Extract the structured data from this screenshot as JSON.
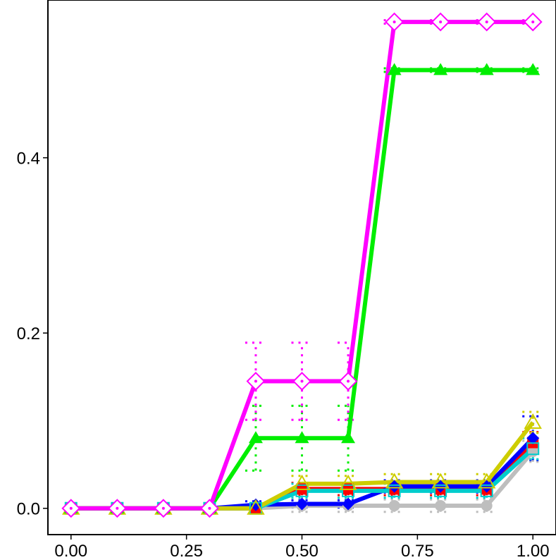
{
  "chart_data": {
    "type": "line",
    "title": "",
    "xlabel": "",
    "ylabel": "",
    "xlim": [
      -0.05,
      1.05
    ],
    "ylim": [
      -0.03,
      0.58
    ],
    "x": [
      0.0,
      0.1,
      0.2,
      0.3,
      0.4,
      0.5,
      0.6,
      0.7,
      0.8,
      0.9,
      1.0
    ],
    "x_ticks": [
      {
        "value": 0.0,
        "label": "0.00"
      },
      {
        "value": 0.25,
        "label": "0.25"
      },
      {
        "value": 0.5,
        "label": "0.50"
      },
      {
        "value": 0.75,
        "label": "0.75"
      },
      {
        "value": 1.0,
        "label": "1.00"
      }
    ],
    "y_ticks": [
      {
        "value": 0.0,
        "label": "0.0"
      },
      {
        "value": 0.2,
        "label": "0.2"
      },
      {
        "value": 0.4,
        "label": "0.4"
      }
    ],
    "grid": false,
    "legend": "none",
    "series": [
      {
        "color": "#bebebe",
        "marker": "circle",
        "values": [
          0,
          0,
          0,
          0,
          0,
          0.003,
          0.003,
          0.003,
          0.003,
          0.003,
          0.065
        ],
        "err": [
          0,
          0,
          0,
          0,
          0,
          0.007,
          0.007,
          0.007,
          0.007,
          0.007,
          0.012
        ]
      },
      {
        "color": "#ff0000",
        "marker": "square-filled",
        "values": [
          0,
          0,
          0,
          0,
          0,
          0.022,
          0.022,
          0.022,
          0.022,
          0.022,
          0.075
        ],
        "err": [
          0,
          0,
          0,
          0,
          0,
          0.007,
          0.007,
          0.007,
          0.007,
          0.007,
          0.012
        ]
      },
      {
        "color": "#0000ff",
        "marker": "diamond-filled",
        "values": [
          0,
          0,
          0,
          0,
          0.004,
          0.005,
          0.005,
          0.025,
          0.025,
          0.025,
          0.08
        ],
        "err": [
          0,
          0,
          0,
          0,
          0.004,
          0.004,
          0.004,
          0.007,
          0.007,
          0.007,
          0.025
        ]
      },
      {
        "color": "#00cdcd",
        "marker": "square-open",
        "values": [
          0,
          0,
          0,
          0,
          0,
          0.02,
          0.02,
          0.02,
          0.02,
          0.02,
          0.068
        ],
        "err": [
          0,
          0,
          0,
          0,
          0,
          0.008,
          0.008,
          0.008,
          0.008,
          0.008,
          0.012
        ]
      },
      {
        "color": "#cdcd00",
        "marker": "triangle-open",
        "values": [
          0,
          0,
          0,
          0,
          0,
          0.028,
          0.028,
          0.03,
          0.03,
          0.03,
          0.098
        ],
        "err": [
          0,
          0,
          0,
          0,
          0,
          0.009,
          0.009,
          0.009,
          0.009,
          0.009,
          0.012
        ]
      },
      {
        "color": "#00ee00",
        "marker": "triangle-filled",
        "values": [
          0,
          0,
          0,
          0,
          0.08,
          0.08,
          0.08,
          0.5,
          0.5,
          0.5,
          0.5
        ],
        "err": [
          0,
          0,
          0,
          0,
          0.037,
          0.037,
          0.037,
          0.002,
          0.002,
          0.002,
          0.002
        ]
      },
      {
        "color": "#ff00ff",
        "marker": "diamond-open-dot",
        "values": [
          0,
          0,
          0,
          0,
          0.145,
          0.145,
          0.145,
          0.555,
          0.555,
          0.555,
          0.555
        ],
        "err": [
          0,
          0,
          0,
          0,
          0.044,
          0.044,
          0.044,
          0.002,
          0.002,
          0.002,
          0.002
        ]
      }
    ]
  }
}
